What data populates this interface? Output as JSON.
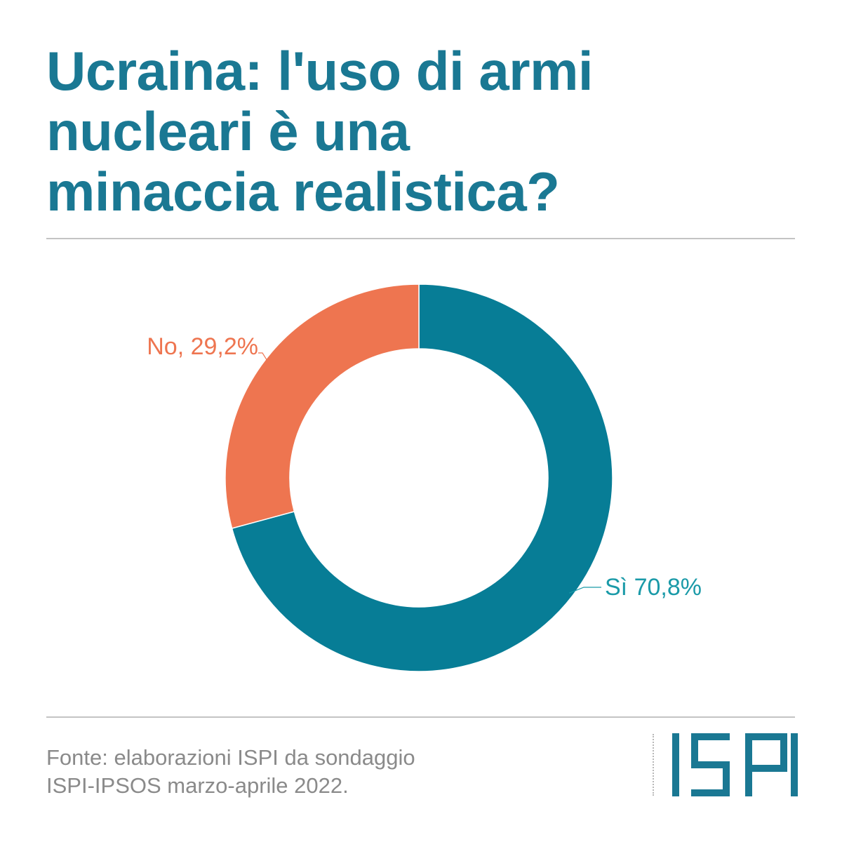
{
  "title_lines": [
    "Ucraina: l'uso di armi",
    "nucleari è una",
    "minaccia realistica?"
  ],
  "chart_data": {
    "type": "pie",
    "donut": true,
    "slices": [
      {
        "label": "Sì",
        "value": 70.8,
        "display": "Sì 70,8%",
        "color": "#077d96"
      },
      {
        "label": "No",
        "value": 29.2,
        "display": "No, 29,2%",
        "color": "#ee7550"
      }
    ]
  },
  "source_lines": [
    "Fonte: elaborazioni ISPI da sondaggio",
    "ISPI-IPSOS marzo-aprile 2022."
  ],
  "logo": {
    "text": "ISPI",
    "color": "#1a7893"
  },
  "colors": {
    "title": "#1a7893",
    "rule": "#c4c4c4",
    "source": "#8a8a8a",
    "si_label": "#1a9aa8",
    "no_label": "#ee7550"
  }
}
